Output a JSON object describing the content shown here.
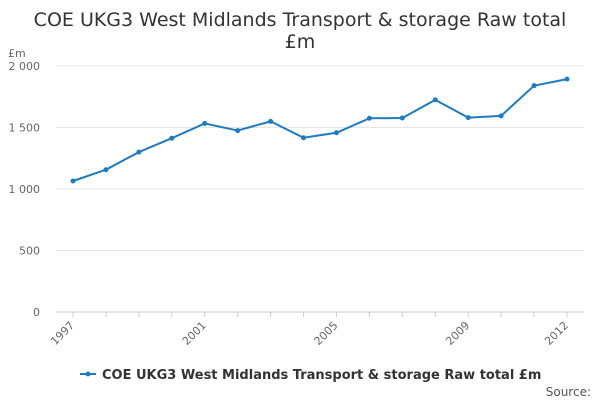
{
  "chart_data": {
    "type": "line",
    "title_line1": "COE UKG3 West Midlands Transport & storage Raw total",
    "title_line2": "£m",
    "unit_label": "£m",
    "xlabel": "",
    "ylabel": "",
    "x": [
      1997,
      1998,
      1999,
      2000,
      2001,
      2002,
      2003,
      2004,
      2005,
      2006,
      2007,
      2008,
      2009,
      2010,
      2011,
      2012
    ],
    "x_tick_labels": [
      "1997",
      "2001",
      "2005",
      "2009",
      "2012"
    ],
    "x_tick_values": [
      1997,
      2001,
      2005,
      2009,
      2012
    ],
    "y_tick_labels": [
      "0",
      "500",
      "1 000",
      "1 500",
      "2 000"
    ],
    "y_tick_values": [
      0,
      500,
      1000,
      1500,
      2000
    ],
    "ylim": [
      0,
      2000
    ],
    "grid": true,
    "series": [
      {
        "name": "COE UKG3 West Midlands Transport & storage Raw total £m",
        "color": "#1f7bbf",
        "values": [
          1065,
          1157,
          1300,
          1413,
          1533,
          1475,
          1550,
          1417,
          1457,
          1575,
          1577,
          1725,
          1580,
          1595,
          1840,
          1893
        ]
      }
    ],
    "legend_position": "bottom-center"
  },
  "footer": {
    "source_label": "Source:"
  }
}
